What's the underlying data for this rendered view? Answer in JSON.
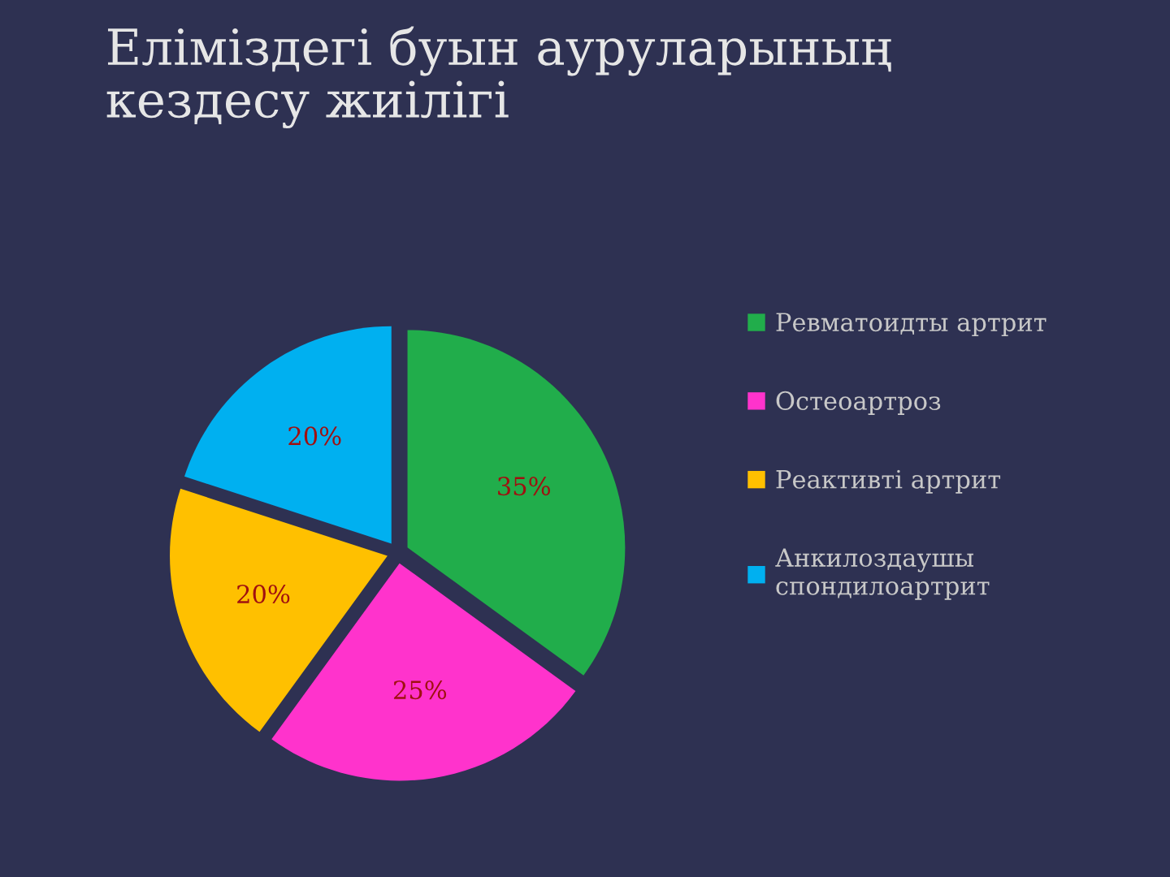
{
  "chart_data": {
    "type": "pie",
    "title": "Еліміздегі буын ауруларының\nкездесу жиілігі",
    "categories": [
      "Ревматоидты артрит",
      "Остеоартроз",
      "Реактивті артрит",
      "Анкилоздаушы\nспондилоартрит"
    ],
    "values": [
      35,
      25,
      20,
      20
    ],
    "colors": [
      "#21ad4b",
      "#ff33cc",
      "#ffc000",
      "#00b0f0"
    ],
    "value_labels": [
      "35%",
      "25%",
      "20%",
      "20%"
    ],
    "legend": "right"
  }
}
